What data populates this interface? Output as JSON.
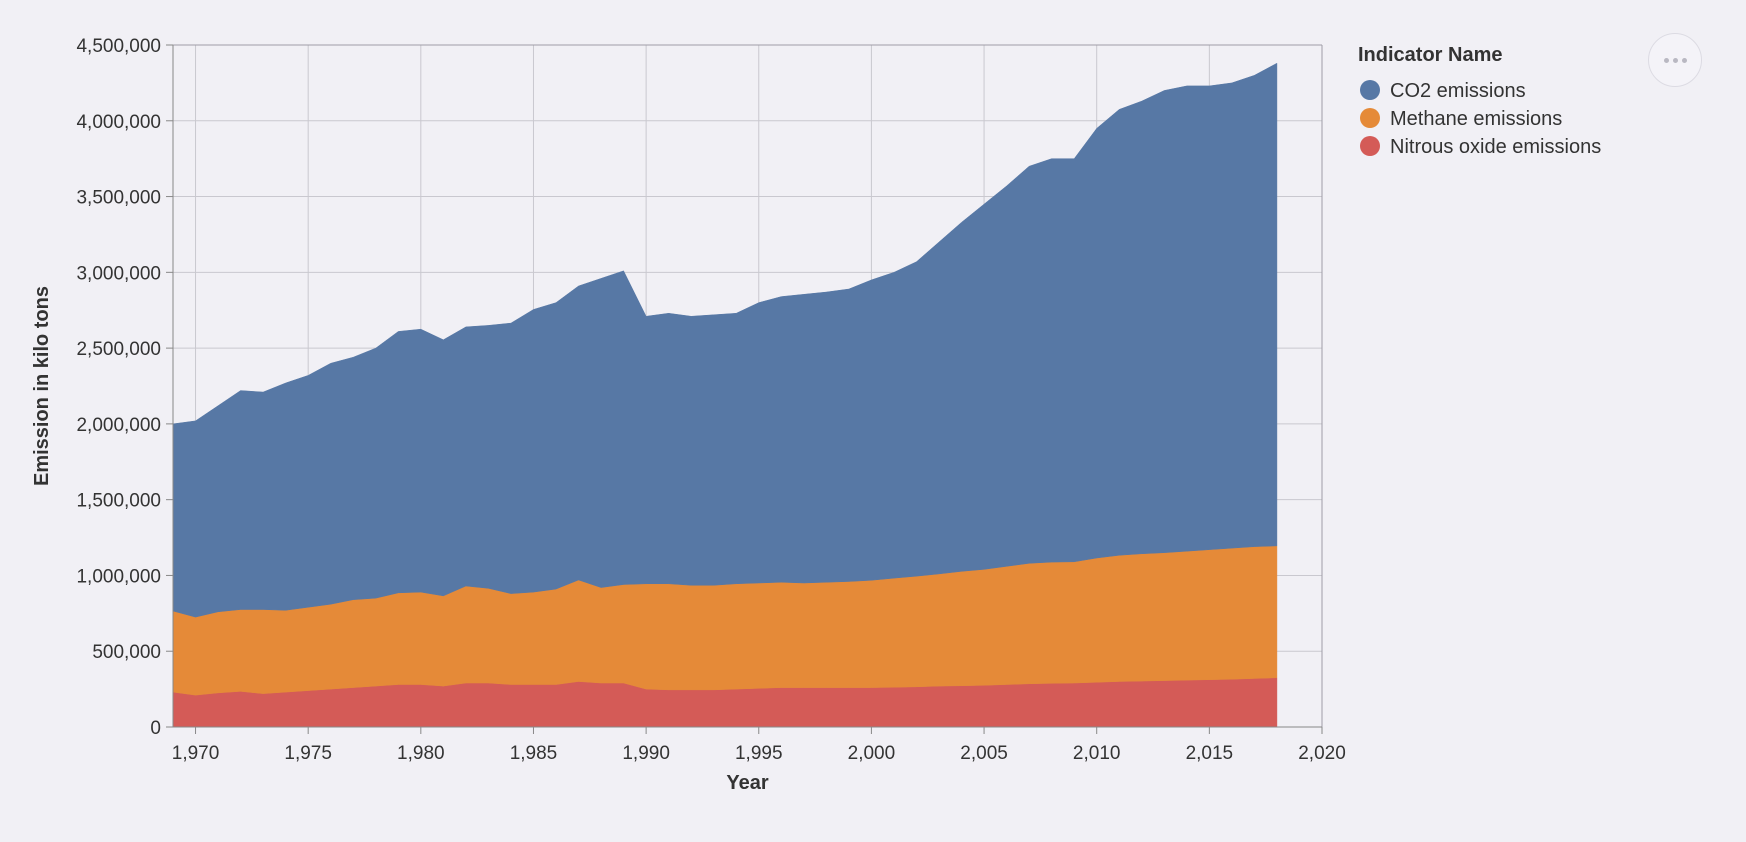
{
  "chart_data": {
    "type": "area",
    "stacked": true,
    "xlabel": "Year",
    "ylabel": "Emission in kilo tons",
    "xlim": [
      1969,
      2020
    ],
    "ylim": [
      0,
      4500000
    ],
    "x_ticks": [
      1970,
      1975,
      1980,
      1985,
      1990,
      1995,
      2000,
      2005,
      2010,
      2015,
      2020
    ],
    "x_tick_labels": [
      "1,970",
      "1,975",
      "1,980",
      "1,985",
      "1,990",
      "1,995",
      "2,000",
      "2,005",
      "2,010",
      "2,015",
      "2,020"
    ],
    "y_ticks": [
      0,
      500000,
      1000000,
      1500000,
      2000000,
      2500000,
      3000000,
      3500000,
      4000000,
      4500000
    ],
    "y_tick_labels": [
      "0",
      "500,000",
      "1,000,000",
      "1,500,000",
      "2,000,000",
      "2,500,000",
      "3,000,000",
      "3,500,000",
      "4,000,000",
      "4,500,000"
    ],
    "grid": true,
    "legend": {
      "title": "Indicator Name",
      "position": "top-right"
    },
    "x": [
      1969,
      1970,
      1971,
      1972,
      1973,
      1974,
      1975,
      1976,
      1977,
      1978,
      1979,
      1980,
      1981,
      1982,
      1983,
      1984,
      1985,
      1986,
      1987,
      1988,
      1989,
      1990,
      1991,
      1992,
      1993,
      1994,
      1995,
      1996,
      1997,
      1998,
      1999,
      2000,
      2001,
      2002,
      2003,
      2004,
      2005,
      2006,
      2007,
      2008,
      2009,
      2010,
      2011,
      2012,
      2013,
      2014,
      2015,
      2016,
      2017,
      2018
    ],
    "series": [
      {
        "name": "Nitrous oxide emissions",
        "color": "#d45b57",
        "values": [
          230000,
          210000,
          225000,
          235000,
          220000,
          230000,
          240000,
          250000,
          260000,
          270000,
          280000,
          280000,
          270000,
          290000,
          290000,
          280000,
          280000,
          280000,
          300000,
          290000,
          290000,
          250000,
          245000,
          245000,
          245000,
          250000,
          255000,
          260000,
          260000,
          260000,
          260000,
          260000,
          262000,
          265000,
          270000,
          272000,
          275000,
          280000,
          285000,
          288000,
          290000,
          295000,
          300000,
          303000,
          306000,
          309000,
          312000,
          315000,
          320000,
          325000
        ]
      },
      {
        "name": "Methane emissions",
        "color": "#e58a38",
        "values": [
          535000,
          515000,
          535000,
          540000,
          555000,
          540000,
          550000,
          560000,
          580000,
          580000,
          605000,
          610000,
          595000,
          640000,
          625000,
          600000,
          610000,
          630000,
          670000,
          630000,
          650000,
          695000,
          700000,
          690000,
          690000,
          695000,
          695000,
          695000,
          690000,
          695000,
          700000,
          708000,
          720000,
          730000,
          740000,
          755000,
          765000,
          780000,
          795000,
          800000,
          800000,
          820000,
          833000,
          840000,
          844000,
          851000,
          858000,
          865000,
          870000,
          870000
        ]
      },
      {
        "name": "CO2 emissions",
        "color": "#5778a5",
        "values": [
          1235000,
          1295000,
          1360000,
          1445000,
          1435000,
          1500000,
          1530000,
          1590000,
          1600000,
          1650000,
          1725000,
          1735000,
          1690000,
          1710000,
          1735000,
          1785000,
          1865000,
          1890000,
          1940000,
          2040000,
          2070000,
          1765000,
          1785000,
          1775000,
          1785000,
          1785000,
          1850000,
          1885000,
          1905000,
          1915000,
          1930000,
          1982000,
          2018000,
          2075000,
          2190000,
          2303000,
          2410000,
          2510000,
          2620000,
          2662000,
          2660000,
          2835000,
          2942000,
          2987000,
          3050000,
          3070000,
          3060000,
          3070000,
          3110000,
          3185000
        ]
      }
    ]
  },
  "ui": {
    "more_menu_icon": "more-horizontal-icon"
  }
}
